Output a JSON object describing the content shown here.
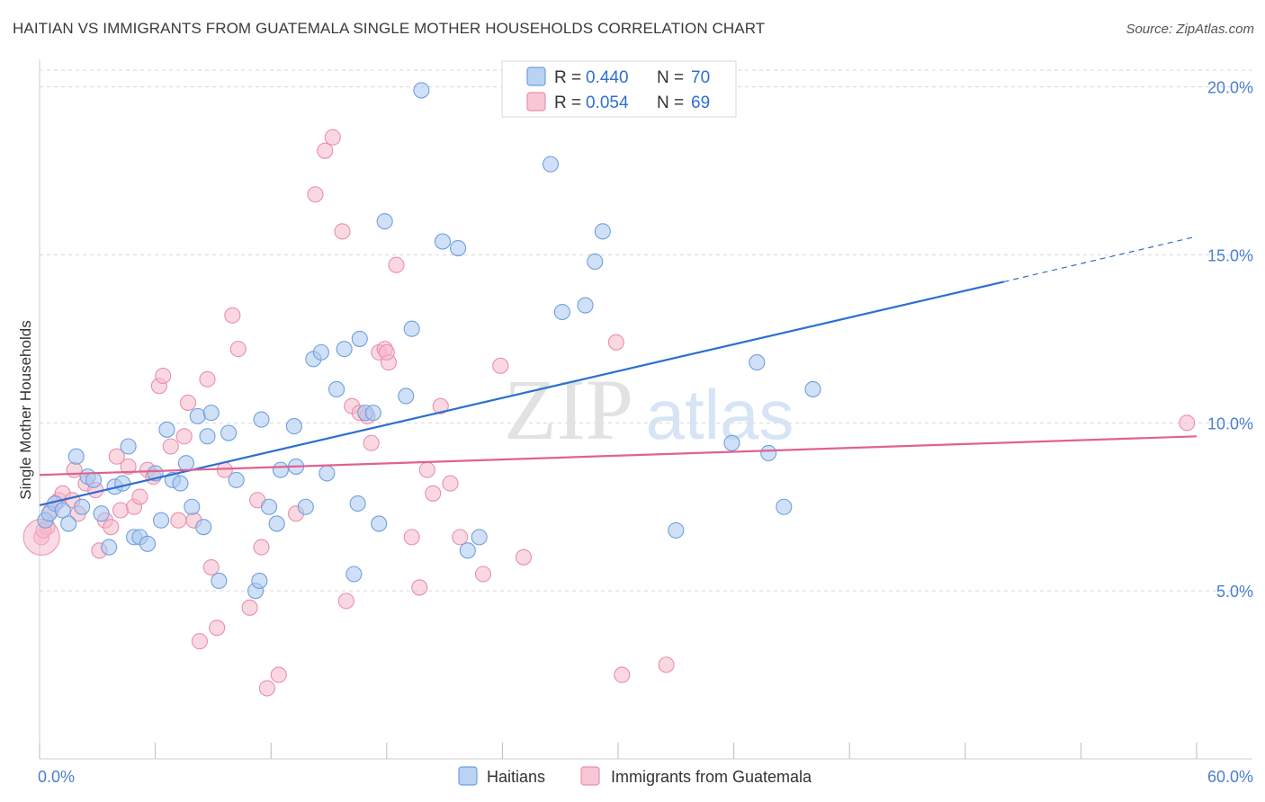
{
  "title": "HAITIAN VS IMMIGRANTS FROM GUATEMALA SINGLE MOTHER HOUSEHOLDS CORRELATION CHART",
  "source": "Source: ZipAtlas.com",
  "watermark": {
    "zip": "ZIP",
    "atlas": "atlas"
  },
  "colors": {
    "blue_fill": "#a9c8f0",
    "blue_stroke": "#6f9fde",
    "blue_line": "#2b6fd0",
    "pink_fill": "#f6b8cb",
    "pink_stroke": "#e98fab",
    "pink_line": "#e0628e",
    "grid": "#d8d8d8",
    "tick_text": "#4a7fd0"
  },
  "chart_data": {
    "type": "scatter",
    "xlabel": "",
    "ylabel": "Single Mother Households",
    "xlim": [
      0,
      60
    ],
    "ylim": [
      0,
      20.5
    ],
    "x_ticks_labeled": [
      {
        "value": 0,
        "label": "0.0%"
      },
      {
        "value": 60,
        "label": "60.0%"
      }
    ],
    "x_ticks_minor": [
      0,
      6,
      12,
      18,
      24,
      30,
      36,
      42,
      48,
      54,
      60
    ],
    "y_ticks": [
      {
        "value": 5,
        "label": "5.0%"
      },
      {
        "value": 10,
        "label": "10.0%"
      },
      {
        "value": 15,
        "label": "15.0%"
      },
      {
        "value": 20,
        "label": "20.0%"
      }
    ],
    "grid": "horizontal dashed",
    "legend_position": "top-center",
    "legend": [
      {
        "r_label": "R =",
        "r_value": "0.440",
        "n_label": "N =",
        "n_value": "70"
      },
      {
        "r_label": "R =",
        "r_value": "0.054",
        "n_label": "N =",
        "n_value": "69"
      }
    ],
    "series": [
      {
        "name": "Haitians",
        "trend": {
          "x0": 0,
          "y0": 7.55,
          "x1": 50,
          "y1": 14.2,
          "dash_to_x": 60,
          "dash_to_y": 15.55
        },
        "points": [
          [
            0.3,
            7.1
          ],
          [
            0.5,
            7.3
          ],
          [
            0.8,
            7.6
          ],
          [
            1.2,
            7.4
          ],
          [
            1.5,
            7.0
          ],
          [
            1.9,
            9.0
          ],
          [
            2.2,
            7.5
          ],
          [
            2.5,
            8.4
          ],
          [
            2.8,
            8.3
          ],
          [
            3.2,
            7.3
          ],
          [
            3.6,
            6.3
          ],
          [
            3.9,
            8.1
          ],
          [
            4.3,
            8.2
          ],
          [
            4.6,
            9.3
          ],
          [
            4.9,
            6.6
          ],
          [
            5.2,
            6.6
          ],
          [
            5.6,
            6.4
          ],
          [
            6.0,
            8.5
          ],
          [
            6.3,
            7.1
          ],
          [
            6.6,
            9.8
          ],
          [
            6.9,
            8.3
          ],
          [
            7.3,
            8.2
          ],
          [
            7.6,
            8.8
          ],
          [
            7.9,
            7.5
          ],
          [
            8.2,
            10.2
          ],
          [
            8.5,
            6.9
          ],
          [
            8.7,
            9.6
          ],
          [
            8.9,
            10.3
          ],
          [
            9.3,
            5.3
          ],
          [
            9.8,
            9.7
          ],
          [
            10.2,
            8.3
          ],
          [
            11.2,
            5.0
          ],
          [
            11.4,
            5.3
          ],
          [
            11.5,
            10.1
          ],
          [
            11.9,
            7.5
          ],
          [
            12.3,
            7.0
          ],
          [
            12.5,
            8.6
          ],
          [
            13.2,
            9.9
          ],
          [
            13.3,
            8.7
          ],
          [
            13.8,
            7.5
          ],
          [
            14.2,
            11.9
          ],
          [
            14.6,
            12.1
          ],
          [
            14.9,
            8.5
          ],
          [
            15.4,
            11.0
          ],
          [
            15.8,
            12.2
          ],
          [
            16.3,
            5.5
          ],
          [
            16.5,
            7.6
          ],
          [
            16.6,
            12.5
          ],
          [
            16.9,
            10.3
          ],
          [
            17.3,
            10.3
          ],
          [
            17.6,
            7.0
          ],
          [
            17.9,
            16.0
          ],
          [
            19.0,
            10.8
          ],
          [
            19.3,
            12.8
          ],
          [
            20.9,
            15.4
          ],
          [
            21.7,
            15.2
          ],
          [
            22.2,
            6.2
          ],
          [
            22.8,
            6.6
          ],
          [
            26.5,
            17.7
          ],
          [
            27.1,
            13.3
          ],
          [
            28.3,
            13.5
          ],
          [
            28.8,
            14.8
          ],
          [
            29.2,
            15.7
          ],
          [
            19.8,
            19.9
          ],
          [
            33.0,
            6.8
          ],
          [
            35.9,
            9.4
          ],
          [
            37.2,
            11.8
          ],
          [
            37.8,
            9.1
          ],
          [
            38.6,
            7.5
          ],
          [
            40.1,
            11.0
          ]
        ]
      },
      {
        "name": "Immigrants from Guatemala",
        "trend": {
          "x0": 0,
          "y0": 8.45,
          "x1": 60,
          "y1": 9.6
        },
        "points": [
          [
            0.1,
            6.6
          ],
          [
            0.4,
            6.9
          ],
          [
            0.6,
            7.4
          ],
          [
            1.0,
            7.7
          ],
          [
            1.2,
            7.9
          ],
          [
            1.7,
            7.7
          ],
          [
            1.8,
            8.6
          ],
          [
            2.0,
            7.3
          ],
          [
            2.4,
            8.2
          ],
          [
            2.9,
            8.0
          ],
          [
            3.1,
            6.2
          ],
          [
            3.4,
            7.1
          ],
          [
            3.7,
            6.9
          ],
          [
            4.0,
            9.0
          ],
          [
            4.2,
            7.4
          ],
          [
            4.6,
            8.7
          ],
          [
            4.9,
            7.5
          ],
          [
            5.2,
            7.8
          ],
          [
            5.6,
            8.6
          ],
          [
            5.9,
            8.4
          ],
          [
            6.2,
            11.1
          ],
          [
            6.4,
            11.4
          ],
          [
            6.8,
            9.3
          ],
          [
            7.2,
            7.1
          ],
          [
            7.5,
            9.6
          ],
          [
            7.7,
            10.6
          ],
          [
            8.0,
            7.1
          ],
          [
            8.3,
            3.5
          ],
          [
            8.7,
            11.3
          ],
          [
            8.9,
            5.7
          ],
          [
            9.2,
            3.9
          ],
          [
            9.6,
            8.6
          ],
          [
            10.0,
            13.2
          ],
          [
            10.3,
            12.2
          ],
          [
            10.9,
            4.5
          ],
          [
            11.3,
            7.7
          ],
          [
            11.5,
            6.3
          ],
          [
            11.8,
            2.1
          ],
          [
            12.4,
            2.5
          ],
          [
            13.3,
            7.3
          ],
          [
            14.3,
            16.8
          ],
          [
            14.8,
            18.1
          ],
          [
            15.2,
            18.5
          ],
          [
            15.7,
            15.7
          ],
          [
            15.9,
            4.7
          ],
          [
            16.2,
            10.5
          ],
          [
            16.6,
            10.3
          ],
          [
            17.0,
            10.2
          ],
          [
            17.2,
            9.4
          ],
          [
            17.6,
            12.1
          ],
          [
            17.9,
            12.2
          ],
          [
            18.1,
            11.8
          ],
          [
            18.5,
            14.7
          ],
          [
            19.3,
            6.6
          ],
          [
            19.7,
            5.1
          ],
          [
            20.1,
            8.6
          ],
          [
            20.4,
            7.9
          ],
          [
            20.8,
            10.5
          ],
          [
            21.3,
            8.2
          ],
          [
            21.8,
            6.6
          ],
          [
            23.0,
            5.5
          ],
          [
            23.9,
            11.7
          ],
          [
            25.1,
            6.0
          ],
          [
            29.9,
            12.4
          ],
          [
            30.2,
            2.5
          ],
          [
            32.5,
            2.8
          ],
          [
            59.5,
            10.0
          ],
          [
            18.0,
            12.1
          ],
          [
            0.2,
            6.8
          ]
        ]
      }
    ]
  },
  "bottom_legend": [
    {
      "label": "Haitians"
    },
    {
      "label": "Immigrants from Guatemala"
    }
  ]
}
